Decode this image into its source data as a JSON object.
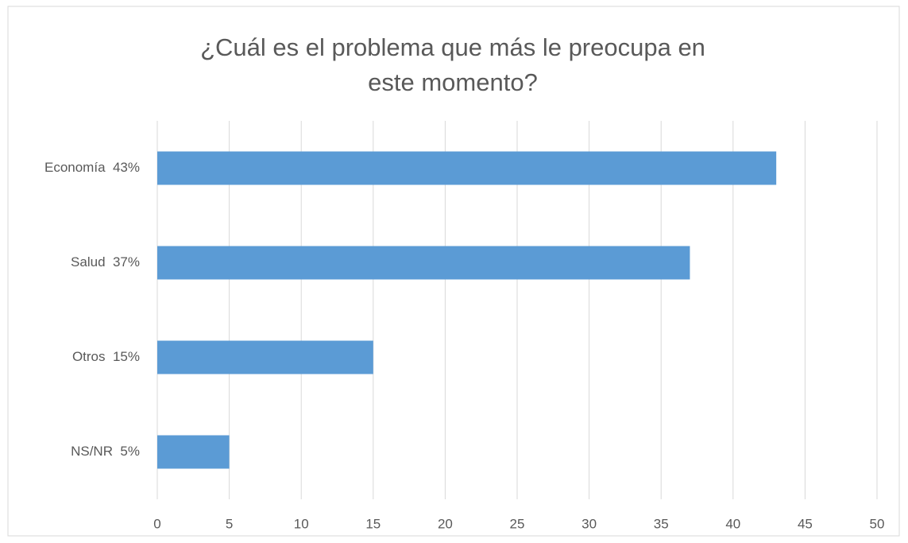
{
  "chart_data": {
    "type": "bar",
    "orientation": "horizontal",
    "title": "¿Cuál es el problema que más le preocupa en este momento?",
    "categories": [
      "Economía  43%",
      "Salud  37%",
      "Otros  15%",
      "NS/NR  5%"
    ],
    "values": [
      43,
      37,
      15,
      5
    ],
    "color": "#5b9bd5",
    "xlim": [
      0,
      50
    ],
    "xticks": [
      0,
      5,
      10,
      15,
      20,
      25,
      30,
      35,
      40,
      45,
      50
    ],
    "grid": true
  }
}
